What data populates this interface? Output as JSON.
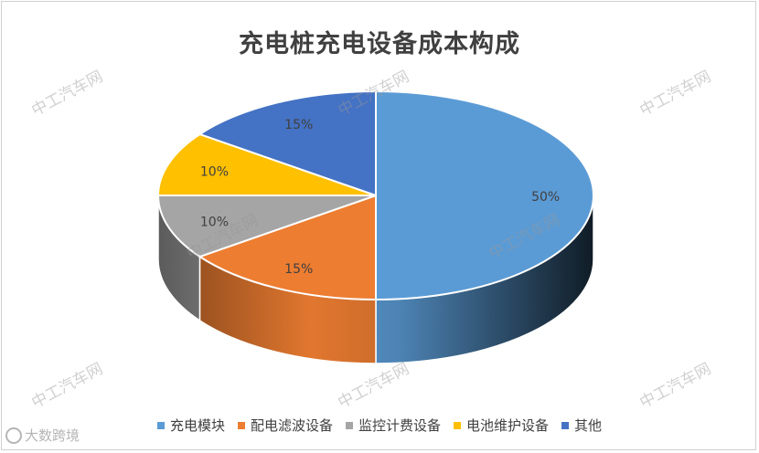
{
  "chart_data": {
    "type": "pie",
    "title": "充电桩充电设备成本构成",
    "slices": [
      {
        "label": "充电模块",
        "value": 50,
        "display": "50%",
        "color": "#5b9bd5"
      },
      {
        "label": "配电滤波设备",
        "value": 15,
        "display": "15%",
        "color": "#ed7d31"
      },
      {
        "label": "监控计费设备",
        "value": 10,
        "display": "10%",
        "color": "#a5a5a5"
      },
      {
        "label": "电池维护设备",
        "value": 10,
        "display": "10%",
        "color": "#ffc000"
      },
      {
        "label": "其他",
        "value": 15,
        "display": "15%",
        "color": "#4472c4"
      }
    ],
    "legend_position": "bottom",
    "style": "3d"
  },
  "watermark": {
    "text": "中工汽车网"
  },
  "logo": {
    "text": "大数跨境",
    "icon": "dsj-logo-icon"
  }
}
